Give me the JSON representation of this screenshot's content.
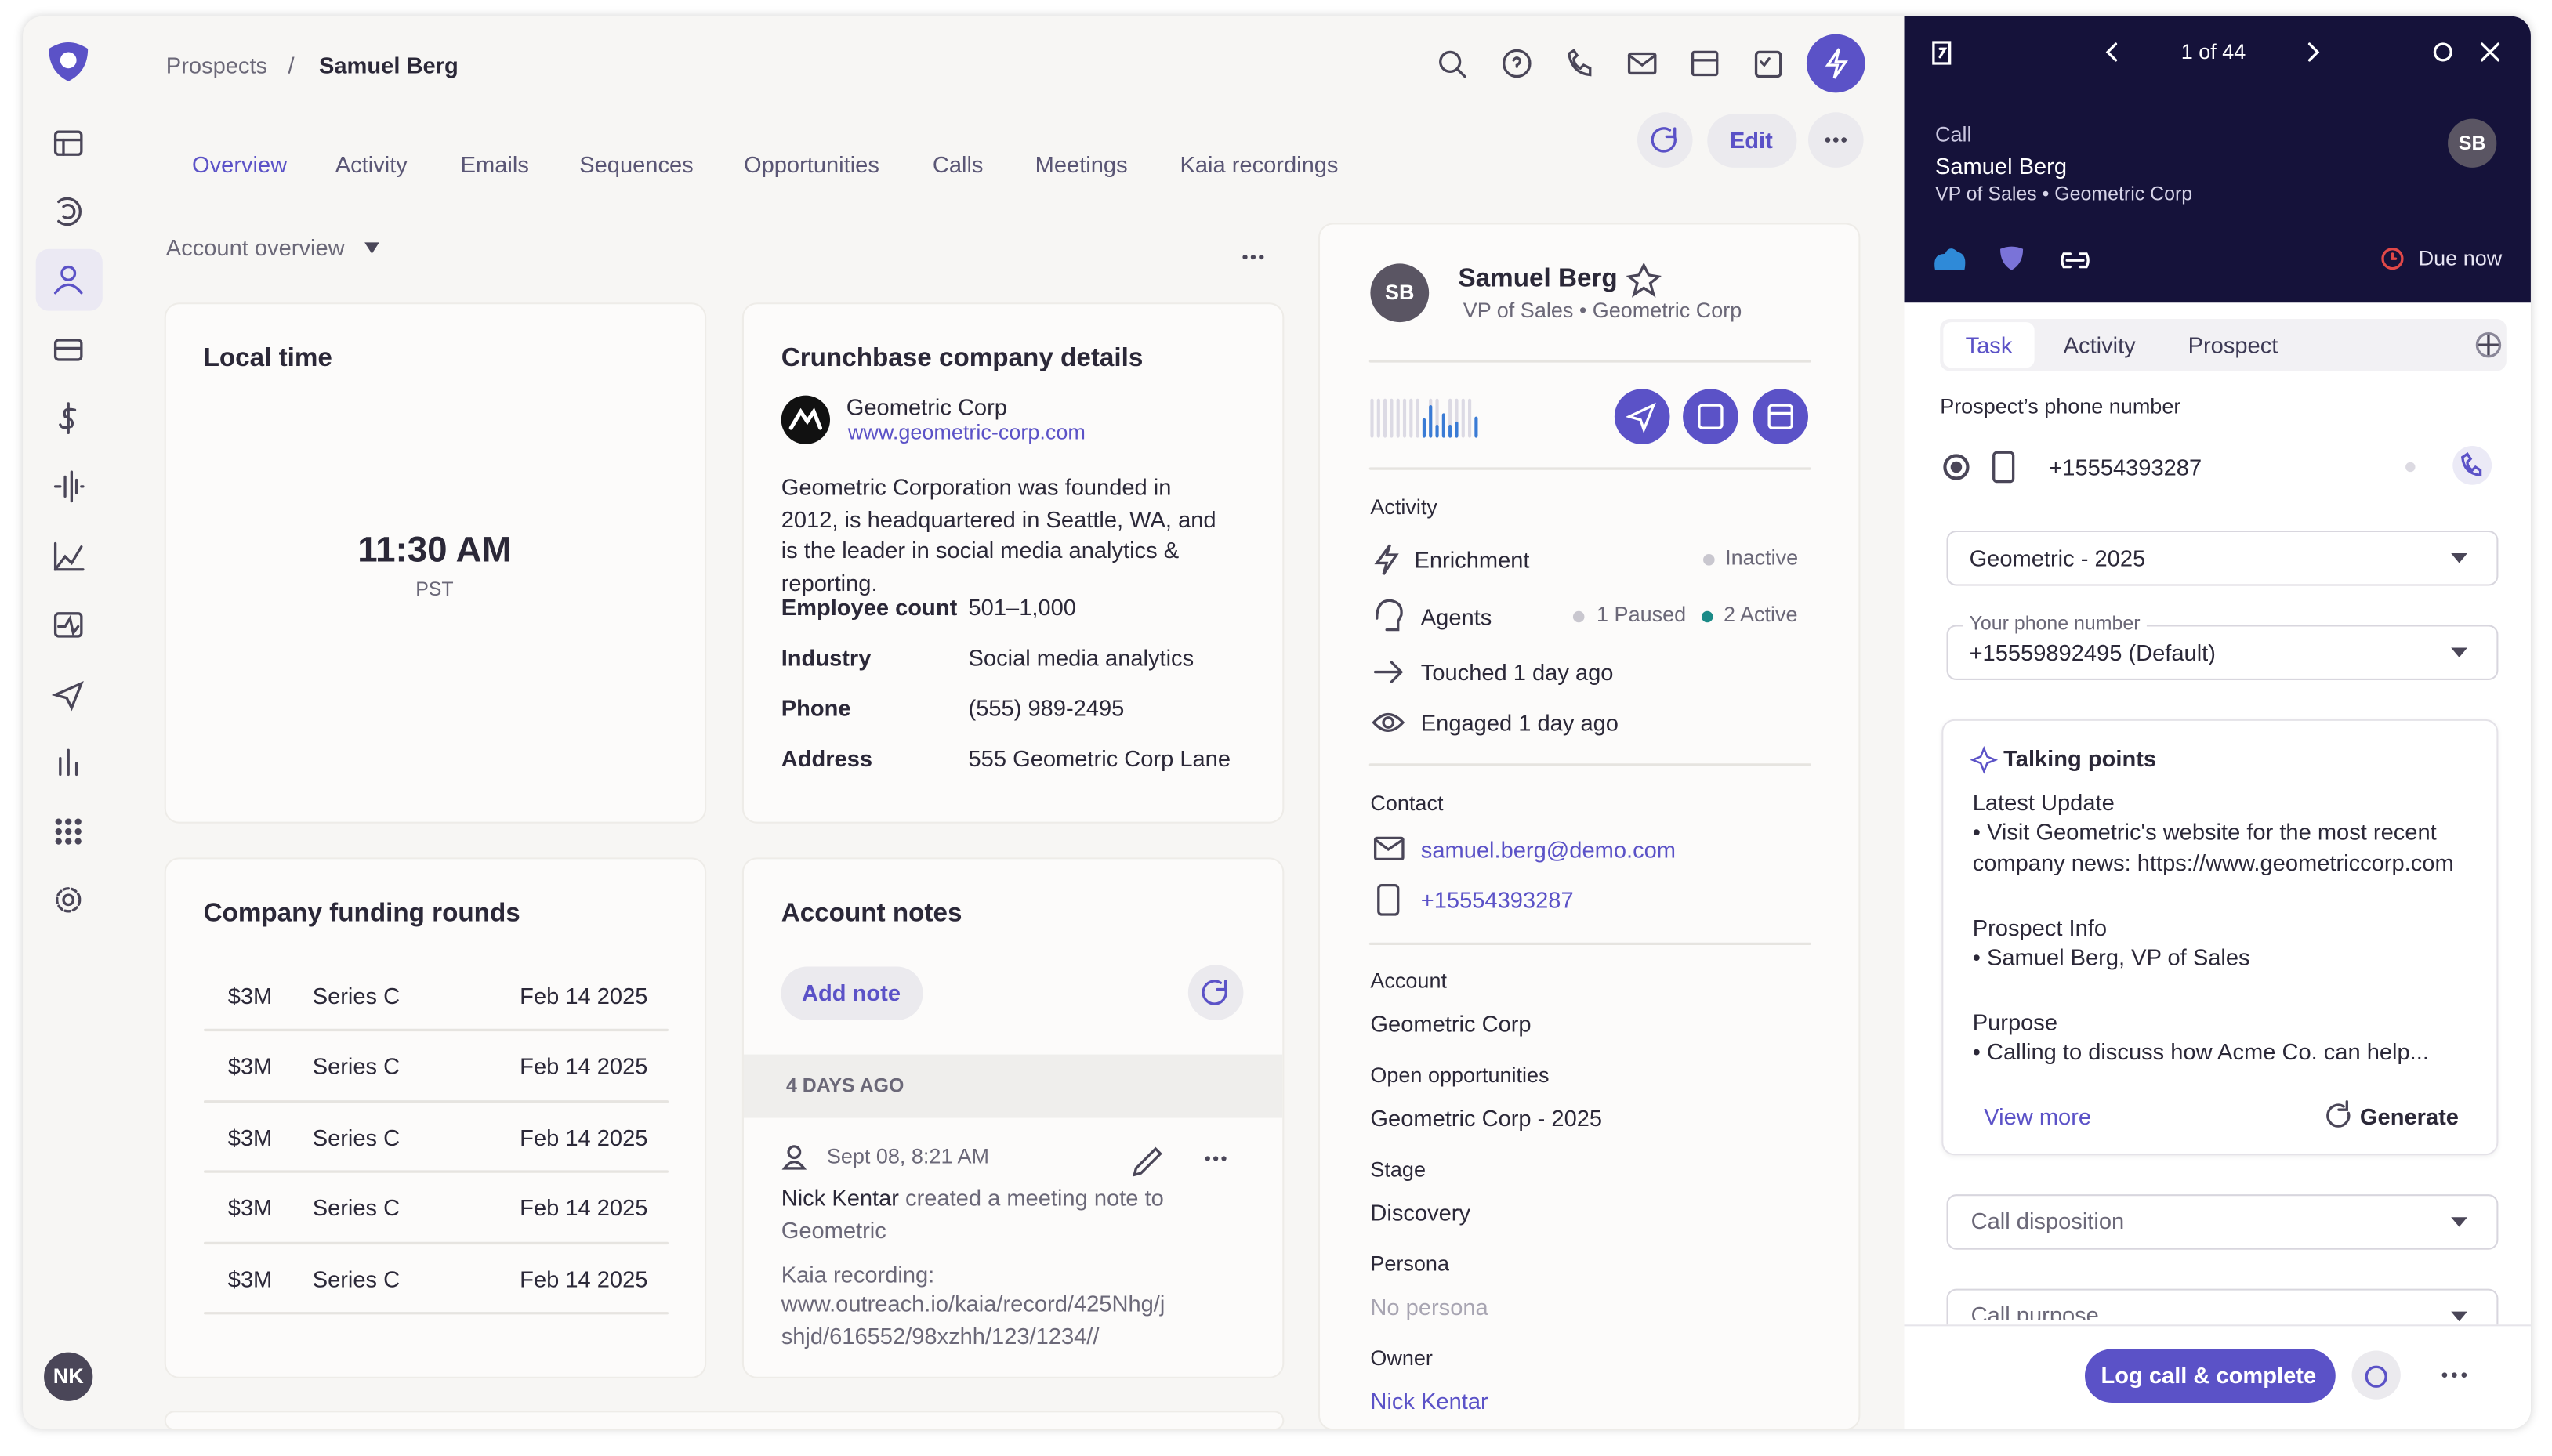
{
  "breadcrumb": {
    "parent": "Prospects",
    "separator": "/",
    "current": "Samuel Berg"
  },
  "user_initials": "NK",
  "actions": {
    "edit": "Edit"
  },
  "tabs": [
    "Overview",
    "Activity",
    "Emails",
    "Sequences",
    "Opportunities",
    "Calls",
    "Meetings",
    "Kaia recordings"
  ],
  "section_selector": "Account overview",
  "local_time": {
    "title": "Local time",
    "time": "11:30 AM",
    "zone": "PST"
  },
  "crunchbase": {
    "title": "Crunchbase company details",
    "company": "Geometric Corp",
    "website": "www.geometric-corp.com",
    "description": "Geometric Corporation was founded in 2012, is headquartered in Seattle, WA, and is the leader in social media analytics & reporting.",
    "fields": [
      {
        "label": "Employee count",
        "value": "501–1,000"
      },
      {
        "label": "Industry",
        "value": "Social media analytics"
      },
      {
        "label": "Phone",
        "value": "(555) 989-2495"
      },
      {
        "label": "Address",
        "value": "555 Geometric Corp Lane"
      }
    ]
  },
  "funding": {
    "title": "Company funding rounds",
    "rows": [
      {
        "amount": "$3M",
        "series": "Series C",
        "date": "Feb 14 2025"
      },
      {
        "amount": "$3M",
        "series": "Series C",
        "date": "Feb 14 2025"
      },
      {
        "amount": "$3M",
        "series": "Series C",
        "date": "Feb 14 2025"
      },
      {
        "amount": "$3M",
        "series": "Series C",
        "date": "Feb 14 2025"
      },
      {
        "amount": "$3M",
        "series": "Series C",
        "date": "Feb 14 2025"
      }
    ]
  },
  "notes": {
    "title": "Account notes",
    "add_button": "Add note",
    "group": "4 DAYS AGO",
    "items": [
      {
        "timestamp": "Sept 08, 8:21 AM",
        "author": "Nick Kentar",
        "action": "created a meeting note to Geometric",
        "body": "Kaia recording:",
        "link": "www.outreach.io/kaia/record/425Nhg/jshjd/616552/98xzhh/123/1234//"
      }
    ]
  },
  "profile": {
    "initials": "SB",
    "name": "Samuel Berg",
    "subtitle": "VP of Sales • Geometric Corp",
    "activity": {
      "title": "Activity",
      "enrichment": "Enrichment",
      "enrichment_status": "Inactive",
      "agents": "Agents",
      "agents_paused": "1 Paused",
      "agents_active": "2 Active",
      "touched": "Touched 1 day ago",
      "engaged": "Engaged 1 day ago"
    },
    "contact": {
      "title": "Contact",
      "email": "samuel.berg@demo.com",
      "phone": "+15554393287"
    },
    "details": [
      {
        "label": "Account",
        "value": "Geometric Corp"
      },
      {
        "label": "Open opportunities",
        "value": "Geometric Corp - 2025"
      },
      {
        "label": "Stage",
        "value": "Discovery"
      },
      {
        "label": "Persona",
        "value": "No persona"
      },
      {
        "label": "Owner",
        "value": "Nick Kentar"
      }
    ]
  },
  "task_panel": {
    "pager": "1 of 44",
    "kind": "Call",
    "name": "Samuel Berg",
    "subtitle": "VP of Sales • Geometric Corp",
    "initials": "SB",
    "due": "Due now",
    "tabs": [
      "Task",
      "Activity",
      "Prospect"
    ],
    "phone_label": "Prospect’s phone number",
    "phone": "+15554393287",
    "sequence": "Geometric - 2025",
    "your_phone_label": "Your phone number",
    "your_phone": "+15559892495 (Default)",
    "talking_points": {
      "title": "Talking points",
      "sections": [
        {
          "heading": "Latest Update",
          "body": "• Visit Geometric's website for the most recent company news: https://www.geometriccorp.com"
        },
        {
          "heading": "Prospect Info",
          "body": "• Samuel Berg, VP of Sales"
        },
        {
          "heading": "Purpose",
          "body": "• Calling to discuss how Acme Co. can help..."
        }
      ],
      "view_more": "View more",
      "generate": "Generate"
    },
    "disposition": "Call disposition",
    "purpose": "Call purpose",
    "complete_button": "Log call & complete"
  }
}
